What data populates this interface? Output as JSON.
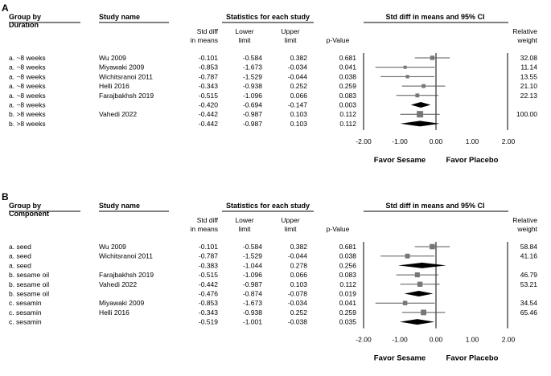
{
  "chart_data": [
    {
      "type": "forest",
      "panel_label": "A",
      "headers": {
        "group": [
          "Group by",
          "Duration"
        ],
        "study": "Study name",
        "stats": "Statistics for each study",
        "cols": {
          "smd": [
            "Std diff",
            "in means"
          ],
          "lower": [
            "Lower",
            "limit"
          ],
          "upper": [
            "Upper",
            "limit"
          ],
          "p": [
            "p-Value"
          ]
        },
        "forest_title": "Std diff in means and 95% CI",
        "weight": [
          "Relative",
          "weight"
        ]
      },
      "rows": [
        {
          "group": "a. ~8 weeks",
          "study": "Wu 2009",
          "smd": "-0.101",
          "lower": "-0.584",
          "upper": "0.382",
          "p": "0.681",
          "weight": "32.08",
          "kind": "study"
        },
        {
          "group": "a. ~8 weeks",
          "study": "Miyawaki 2009",
          "smd": "-0.853",
          "lower": "-1.673",
          "upper": "-0.034",
          "p": "0.041",
          "weight": "11.14",
          "kind": "study"
        },
        {
          "group": "a. ~8 weeks",
          "study": "Wichitsranoi 2011",
          "smd": "-0.787",
          "lower": "-1.529",
          "upper": "-0.044",
          "p": "0.038",
          "weight": "13.55",
          "kind": "study"
        },
        {
          "group": "a. ~8 weeks",
          "study": "Helli 2016",
          "smd": "-0.343",
          "lower": "-0.938",
          "upper": "0.252",
          "p": "0.259",
          "weight": "21.10",
          "kind": "study"
        },
        {
          "group": "a. ~8 weeks",
          "study": "Farajbakhsh 2019",
          "smd": "-0.515",
          "lower": "-1.096",
          "upper": "0.066",
          "p": "0.083",
          "weight": "22.13",
          "kind": "study"
        },
        {
          "group": "a. ~8 weeks",
          "study": "",
          "smd": "-0.420",
          "lower": "-0.694",
          "upper": "-0.147",
          "p": "0.003",
          "weight": "",
          "kind": "pooled"
        },
        {
          "group": "b. >8 weeks",
          "study": "Vahedi 2022",
          "smd": "-0.442",
          "lower": "-0.987",
          "upper": "0.103",
          "p": "0.112",
          "weight": "100.00",
          "kind": "study"
        },
        {
          "group": "b. >8 weeks",
          "study": "",
          "smd": "-0.442",
          "lower": "-0.987",
          "upper": "0.103",
          "p": "0.112",
          "weight": "",
          "kind": "pooled"
        }
      ],
      "x_axis": {
        "min": -2,
        "max": 2,
        "ticks": [
          "-2.00",
          "-1.00",
          "0.00",
          "1.00",
          "2.00"
        ]
      },
      "favor_left": "Favor Sesame",
      "favor_right": "Favor Placebo"
    },
    {
      "type": "forest",
      "panel_label": "B",
      "headers": {
        "group": [
          "Group by",
          "Component"
        ],
        "study": "Study name",
        "stats": "Statistics for each study",
        "cols": {
          "smd": [
            "Std diff",
            "in means"
          ],
          "lower": [
            "Lower",
            "limit"
          ],
          "upper": [
            "Upper",
            "limit"
          ],
          "p": [
            "p-Value"
          ]
        },
        "forest_title": "Std diff in means and 95% CI",
        "weight": [
          "Relative",
          "weight"
        ]
      },
      "rows": [
        {
          "group": "a. seed",
          "study": "Wu 2009",
          "smd": "-0.101",
          "lower": "-0.584",
          "upper": "0.382",
          "p": "0.681",
          "weight": "58.84",
          "kind": "study"
        },
        {
          "group": "a. seed",
          "study": "Wichitsranoi 2011",
          "smd": "-0.787",
          "lower": "-1.529",
          "upper": "-0.044",
          "p": "0.038",
          "weight": "41.16",
          "kind": "study"
        },
        {
          "group": "a. seed",
          "study": "",
          "smd": "-0.383",
          "lower": "-1.044",
          "upper": "0.278",
          "p": "0.256",
          "weight": "",
          "kind": "pooled"
        },
        {
          "group": "b. sesame oil",
          "study": "Farajbakhsh 2019",
          "smd": "-0.515",
          "lower": "-1.096",
          "upper": "0.066",
          "p": "0.083",
          "weight": "46.79",
          "kind": "study"
        },
        {
          "group": "b. sesame oil",
          "study": "Vahedi 2022",
          "smd": "-0.442",
          "lower": "-0.987",
          "upper": "0.103",
          "p": "0.112",
          "weight": "53.21",
          "kind": "study"
        },
        {
          "group": "b. sesame oil",
          "study": "",
          "smd": "-0.476",
          "lower": "-0.874",
          "upper": "-0.078",
          "p": "0.019",
          "weight": "",
          "kind": "pooled"
        },
        {
          "group": "c. sesamin",
          "study": "Miyawaki 2009",
          "smd": "-0.853",
          "lower": "-1.673",
          "upper": "-0.034",
          "p": "0.041",
          "weight": "34.54",
          "kind": "study"
        },
        {
          "group": "c. sesamin",
          "study": "Helli 2016",
          "smd": "-0.343",
          "lower": "-0.938",
          "upper": "0.252",
          "p": "0.259",
          "weight": "65.46",
          "kind": "study"
        },
        {
          "group": "c. sesamin",
          "study": "",
          "smd": "-0.519",
          "lower": "-1.001",
          "upper": "-0.038",
          "p": "0.035",
          "weight": "",
          "kind": "pooled"
        }
      ],
      "x_axis": {
        "min": -2,
        "max": 2,
        "ticks": [
          "-2.00",
          "-1.00",
          "0.00",
          "1.00",
          "2.00"
        ]
      },
      "favor_left": "Favor Sesame",
      "favor_right": "Favor Placebo"
    }
  ]
}
